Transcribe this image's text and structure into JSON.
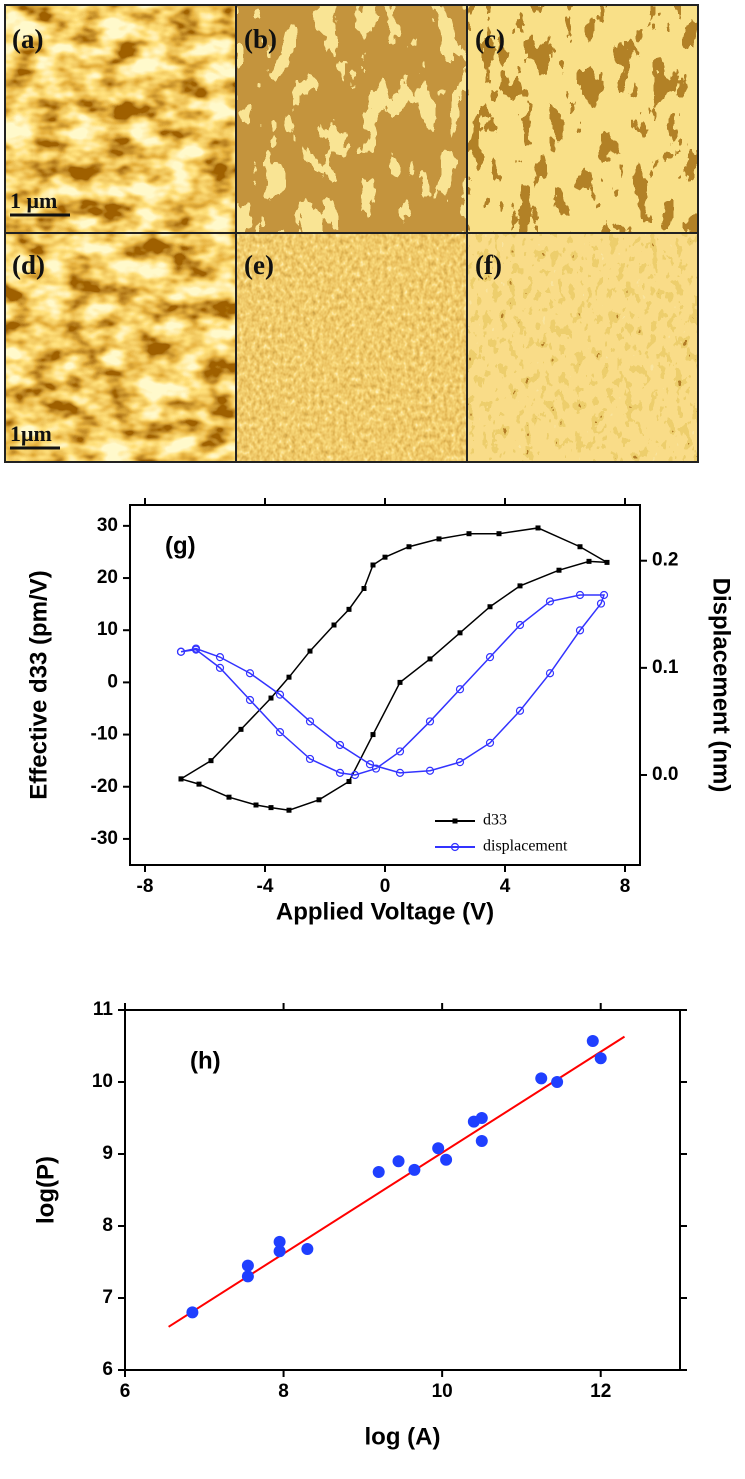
{
  "images": [
    {
      "label": "(a)",
      "scale_bar": "1 μm"
    },
    {
      "label": "(b)"
    },
    {
      "label": "(c)"
    },
    {
      "label": "(d)",
      "scale_bar": "1μm"
    },
    {
      "label": "(e)"
    },
    {
      "label": "(f)"
    }
  ],
  "chart_data": [
    {
      "type": "line",
      "annotation": "(g)",
      "xlabel": "Applied Voltage (V)",
      "ylabel": "Effective d33 (pm/V)",
      "y2label": "Displacement (nm)",
      "xlim": [
        -8.5,
        8.5
      ],
      "xticks": [
        -8,
        -4,
        0,
        4,
        8
      ],
      "ylim": [
        -35,
        34
      ],
      "yticks": [
        -30,
        -20,
        -10,
        0,
        10,
        20,
        30
      ],
      "y2lim": [
        -0.084,
        0.252
      ],
      "y2ticks": [
        {
          "value": 0,
          "label": "0.0"
        },
        0.1,
        0.2
      ],
      "legend": "lower right",
      "series": [
        {
          "name": "d33",
          "color": "#000000",
          "marker": "square",
          "x": [
            -6.8,
            -6.2,
            -5.2,
            -4.3,
            -3.8,
            -3.2,
            -2.2,
            -1.2,
            -0.4,
            0.5,
            1.5,
            2.5,
            3.5,
            4.5,
            5.8,
            6.8,
            7.4,
            6.5,
            5.1,
            3.8,
            2.8,
            1.8,
            0.8,
            0,
            -0.4,
            -0.7,
            -1.2,
            -1.7,
            -2.5,
            -3.2,
            -3.8,
            -4.8,
            -5.8,
            -6.8
          ],
          "values": [
            -18.5,
            -19.5,
            -22,
            -23.5,
            -24,
            -24.5,
            -22.5,
            -19,
            -10,
            0,
            4.5,
            9.5,
            14.5,
            18.5,
            21.5,
            23.2,
            23,
            26,
            29.6,
            28.5,
            28.5,
            27.5,
            26,
            24,
            22.5,
            18,
            14,
            11,
            6,
            1,
            -3,
            -9,
            -15,
            -18.5
          ]
        },
        {
          "name": "displacement",
          "color": "#3333ff",
          "marker": "open-circle",
          "axis": "y2",
          "x": [
            -6.8,
            -6.3,
            -5.5,
            -4.5,
            -3.5,
            -2.5,
            -1.5,
            -1,
            -0.3,
            0.5,
            1.5,
            2.5,
            3.5,
            4.5,
            5.5,
            6.5,
            7.3,
            7.2,
            6.5,
            5.5,
            4.5,
            3.5,
            2.5,
            1.5,
            0.5,
            -0.5,
            -1.5,
            -2.5,
            -3.5,
            -4.5,
            -5.5,
            -6.3,
            -6.8
          ],
          "values": [
            0.115,
            0.117,
            0.1,
            0.07,
            0.04,
            0.015,
            0.002,
            0,
            0.006,
            0.022,
            0.05,
            0.08,
            0.11,
            0.14,
            0.162,
            0.168,
            0.168,
            0.16,
            0.135,
            0.095,
            0.06,
            0.03,
            0.012,
            0.004,
            0.002,
            0.01,
            0.028,
            0.05,
            0.075,
            0.095,
            0.11,
            0.118,
            0.115
          ]
        }
      ]
    },
    {
      "type": "scatter",
      "annotation": "(h)",
      "xlabel": "log (A)",
      "ylabel": "log(P)",
      "xlim": [
        6,
        13
      ],
      "xticks": [
        6,
        8,
        10,
        12
      ],
      "ylim": [
        6,
        11
      ],
      "yticks": [
        6,
        7,
        8,
        9,
        10,
        11
      ],
      "series": [
        {
          "color": "#1f3fff",
          "x": [
            6.85,
            7.55,
            7.55,
            7.95,
            7.95,
            8.3,
            9.2,
            9.45,
            9.65,
            9.95,
            10.05,
            10.4,
            10.5,
            10.5,
            11.25,
            11.45,
            11.9,
            12.0
          ],
          "values": [
            6.8,
            7.3,
            7.45,
            7.65,
            7.78,
            7.68,
            8.75,
            8.9,
            8.78,
            9.08,
            8.92,
            9.45,
            9.5,
            9.18,
            10.05,
            10.0,
            10.57,
            10.33
          ]
        }
      ],
      "fit": {
        "color": "#ff0000",
        "x": [
          6.55,
          12.3
        ],
        "values": [
          6.6,
          10.63
        ]
      }
    }
  ]
}
